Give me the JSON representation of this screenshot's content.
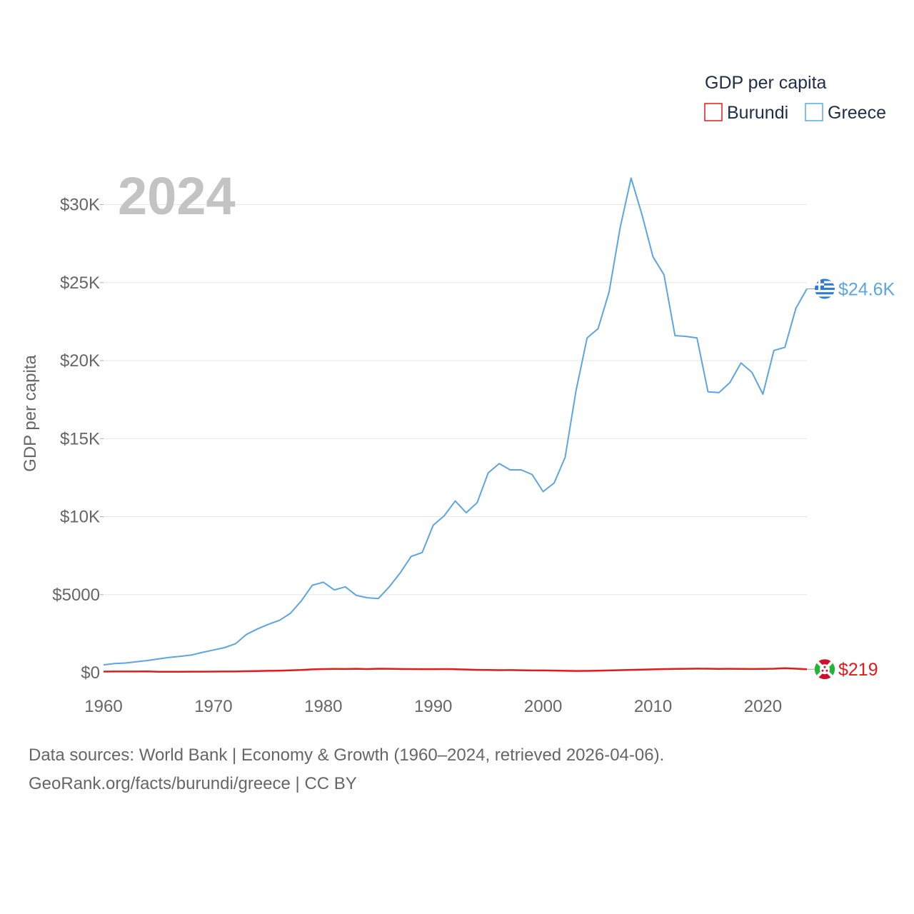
{
  "chart_data": {
    "type": "line",
    "ylabel": "GDP per capita",
    "xlabel": "",
    "year_label": "2024",
    "xlim": [
      1960,
      2024
    ],
    "ylim": [
      0,
      31500
    ],
    "x_ticks": [
      1960,
      1970,
      1980,
      1990,
      2000,
      2010,
      2020
    ],
    "x_tick_labels": [
      "1960",
      "1970",
      "1980",
      "1990",
      "2000",
      "2010",
      "2020"
    ],
    "y_ticks": [
      0,
      5000,
      10000,
      15000,
      20000,
      25000,
      30000
    ],
    "y_tick_labels": [
      "$0",
      "$5000",
      "$10K",
      "$15K",
      "$20K",
      "$25K",
      "$30K"
    ],
    "legend": {
      "title": "GDP per capita",
      "entries": [
        "Burundi",
        "Greece"
      ],
      "position": "top-right"
    },
    "x": [
      1960,
      1961,
      1962,
      1963,
      1964,
      1965,
      1966,
      1967,
      1968,
      1969,
      1970,
      1971,
      1972,
      1973,
      1974,
      1975,
      1976,
      1977,
      1978,
      1979,
      1980,
      1981,
      1982,
      1983,
      1984,
      1985,
      1986,
      1987,
      1988,
      1989,
      1990,
      1991,
      1992,
      1993,
      1994,
      1995,
      1996,
      1997,
      1998,
      1999,
      2000,
      2001,
      2002,
      2003,
      2004,
      2005,
      2006,
      2007,
      2008,
      2009,
      2010,
      2011,
      2012,
      2013,
      2014,
      2015,
      2016,
      2017,
      2018,
      2019,
      2020,
      2021,
      2022,
      2023,
      2024
    ],
    "series": [
      {
        "name": "Burundi",
        "color": "#e31a1c",
        "end_label": "$219",
        "flag": "burundi",
        "values": [
          70,
          72,
          73,
          75,
          78,
          55,
          58,
          60,
          62,
          64,
          70,
          72,
          75,
          90,
          100,
          120,
          130,
          150,
          170,
          210,
          230,
          240,
          235,
          245,
          230,
          250,
          245,
          235,
          230,
          225,
          225,
          230,
          220,
          200,
          180,
          170,
          160,
          165,
          155,
          140,
          140,
          135,
          120,
          110,
          115,
          130,
          140,
          160,
          180,
          190,
          210,
          230,
          240,
          245,
          255,
          250,
          240,
          245,
          240,
          235,
          240,
          250,
          290,
          250,
          219
        ]
      },
      {
        "name": "Greece",
        "color": "#5ca5e3",
        "end_label": "$24.6K",
        "flag": "greece",
        "values": [
          500,
          580,
          620,
          700,
          780,
          880,
          980,
          1050,
          1130,
          1300,
          1450,
          1600,
          1850,
          2450,
          2800,
          3100,
          3350,
          3800,
          4600,
          5600,
          5800,
          5300,
          5500,
          4950,
          4800,
          4750,
          5500,
          6400,
          7450,
          7700,
          9450,
          10050,
          11000,
          10250,
          10900,
          12800,
          13400,
          13000,
          13000,
          12700,
          11600,
          12150,
          13800,
          18100,
          21450,
          22050,
          24400,
          28500,
          31700,
          29350,
          26650,
          25500,
          21600,
          21550,
          21450,
          18000,
          17950,
          18600,
          19850,
          19250,
          17850,
          20650,
          20850,
          23350,
          24600
        ]
      }
    ]
  },
  "footer": {
    "line1": "Data sources: World Bank | Economy & Growth (1960–2024, retrieved 2026-04-06).",
    "line2": "GeoRank.org/facts/burundi/greece | CC BY"
  }
}
